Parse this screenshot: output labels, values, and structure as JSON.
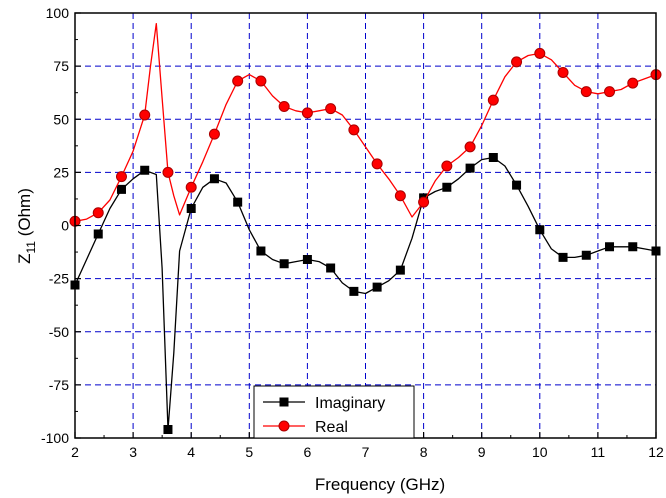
{
  "chart_data": {
    "type": "line",
    "xlabel": "Frequency (GHz)",
    "ylabel_main": "Z",
    "ylabel_sub": "11",
    "ylabel_unit": " (Ohm)",
    "xlim": [
      2,
      12
    ],
    "ylim": [
      -100,
      100
    ],
    "xticks": [
      2,
      3,
      4,
      5,
      6,
      7,
      8,
      9,
      10,
      11,
      12
    ],
    "yticks": [
      -100,
      -75,
      -50,
      -25,
      0,
      25,
      50,
      75,
      100
    ],
    "grid": true,
    "legend_position": "bottom-center",
    "colors": {
      "imaginary": "#000000",
      "real": "#ff0000",
      "grid": "#0000cc",
      "real_marker_stroke": "#aa0000"
    },
    "series": [
      {
        "name": "Imaginary",
        "marker": "square",
        "line": [
          [
            2.0,
            -28
          ],
          [
            2.2,
            -16
          ],
          [
            2.4,
            -4
          ],
          [
            2.6,
            8
          ],
          [
            2.8,
            17
          ],
          [
            3.0,
            22
          ],
          [
            3.2,
            26
          ],
          [
            3.4,
            24
          ],
          [
            3.5,
            -20
          ],
          [
            3.6,
            -96
          ],
          [
            3.7,
            -60
          ],
          [
            3.8,
            -12
          ],
          [
            4.0,
            8
          ],
          [
            4.2,
            18
          ],
          [
            4.4,
            22
          ],
          [
            4.6,
            20
          ],
          [
            4.8,
            11
          ],
          [
            5.0,
            -2
          ],
          [
            5.2,
            -12
          ],
          [
            5.4,
            -16
          ],
          [
            5.6,
            -18
          ],
          [
            5.8,
            -17
          ],
          [
            6.0,
            -16
          ],
          [
            6.2,
            -17
          ],
          [
            6.4,
            -20
          ],
          [
            6.6,
            -27
          ],
          [
            6.8,
            -31
          ],
          [
            7.0,
            -32
          ],
          [
            7.2,
            -29
          ],
          [
            7.4,
            -26
          ],
          [
            7.6,
            -21
          ],
          [
            7.8,
            -6
          ],
          [
            8.0,
            13
          ],
          [
            8.2,
            16
          ],
          [
            8.4,
            18
          ],
          [
            8.6,
            22
          ],
          [
            8.8,
            27
          ],
          [
            9.0,
            31
          ],
          [
            9.2,
            32
          ],
          [
            9.4,
            28
          ],
          [
            9.6,
            19
          ],
          [
            9.8,
            9
          ],
          [
            10.0,
            -2
          ],
          [
            10.2,
            -11
          ],
          [
            10.4,
            -15
          ],
          [
            10.6,
            -15
          ],
          [
            10.8,
            -14
          ],
          [
            11.0,
            -12
          ],
          [
            11.2,
            -10
          ],
          [
            11.4,
            -10
          ],
          [
            11.6,
            -10
          ],
          [
            11.8,
            -11
          ],
          [
            12.0,
            -12
          ]
        ],
        "markers": [
          [
            2.0,
            -28
          ],
          [
            2.4,
            -4
          ],
          [
            2.8,
            17
          ],
          [
            3.2,
            26
          ],
          [
            3.6,
            -96
          ],
          [
            4.0,
            8
          ],
          [
            4.4,
            22
          ],
          [
            4.8,
            11
          ],
          [
            5.2,
            -12
          ],
          [
            5.6,
            -18
          ],
          [
            6.0,
            -16
          ],
          [
            6.4,
            -20
          ],
          [
            6.8,
            -31
          ],
          [
            7.2,
            -29
          ],
          [
            7.6,
            -21
          ],
          [
            8.0,
            13
          ],
          [
            8.4,
            18
          ],
          [
            8.8,
            27
          ],
          [
            9.2,
            32
          ],
          [
            9.6,
            19
          ],
          [
            10.0,
            -2
          ],
          [
            10.4,
            -15
          ],
          [
            10.8,
            -14
          ],
          [
            11.2,
            -10
          ],
          [
            11.6,
            -10
          ],
          [
            12.0,
            -12
          ]
        ]
      },
      {
        "name": "Real",
        "marker": "circle",
        "line": [
          [
            2.0,
            2
          ],
          [
            2.2,
            3
          ],
          [
            2.4,
            6
          ],
          [
            2.6,
            12
          ],
          [
            2.8,
            23
          ],
          [
            3.0,
            35
          ],
          [
            3.2,
            52
          ],
          [
            3.3,
            75
          ],
          [
            3.4,
            95
          ],
          [
            3.5,
            60
          ],
          [
            3.6,
            25
          ],
          [
            3.7,
            14
          ],
          [
            3.8,
            5
          ],
          [
            4.0,
            18
          ],
          [
            4.2,
            30
          ],
          [
            4.4,
            43
          ],
          [
            4.6,
            57
          ],
          [
            4.8,
            68
          ],
          [
            5.0,
            71
          ],
          [
            5.2,
            68
          ],
          [
            5.4,
            61
          ],
          [
            5.6,
            56
          ],
          [
            5.8,
            54
          ],
          [
            6.0,
            53
          ],
          [
            6.2,
            54
          ],
          [
            6.4,
            55
          ],
          [
            6.6,
            52
          ],
          [
            6.8,
            45
          ],
          [
            7.0,
            37
          ],
          [
            7.2,
            29
          ],
          [
            7.4,
            22
          ],
          [
            7.6,
            14
          ],
          [
            7.8,
            4
          ],
          [
            8.0,
            11
          ],
          [
            8.2,
            21
          ],
          [
            8.4,
            28
          ],
          [
            8.6,
            32
          ],
          [
            8.8,
            37
          ],
          [
            9.0,
            47
          ],
          [
            9.2,
            59
          ],
          [
            9.4,
            70
          ],
          [
            9.6,
            77
          ],
          [
            9.8,
            80
          ],
          [
            10.0,
            81
          ],
          [
            10.2,
            78
          ],
          [
            10.4,
            72
          ],
          [
            10.6,
            66
          ],
          [
            10.8,
            63
          ],
          [
            11.0,
            62
          ],
          [
            11.2,
            63
          ],
          [
            11.4,
            64
          ],
          [
            11.6,
            67
          ],
          [
            11.8,
            69
          ],
          [
            12.0,
            71
          ]
        ],
        "markers": [
          [
            2.0,
            2
          ],
          [
            2.4,
            6
          ],
          [
            2.8,
            23
          ],
          [
            3.2,
            52
          ],
          [
            3.6,
            25
          ],
          [
            4.0,
            18
          ],
          [
            4.4,
            43
          ],
          [
            4.8,
            68
          ],
          [
            5.2,
            68
          ],
          [
            5.6,
            56
          ],
          [
            6.0,
            53
          ],
          [
            6.4,
            55
          ],
          [
            6.8,
            45
          ],
          [
            7.2,
            29
          ],
          [
            7.6,
            14
          ],
          [
            8.0,
            11
          ],
          [
            8.4,
            28
          ],
          [
            8.8,
            37
          ],
          [
            9.2,
            59
          ],
          [
            9.6,
            77
          ],
          [
            10.0,
            81
          ],
          [
            10.4,
            72
          ],
          [
            10.8,
            63
          ],
          [
            11.2,
            63
          ],
          [
            11.6,
            67
          ],
          [
            12.0,
            71
          ]
        ]
      }
    ]
  }
}
